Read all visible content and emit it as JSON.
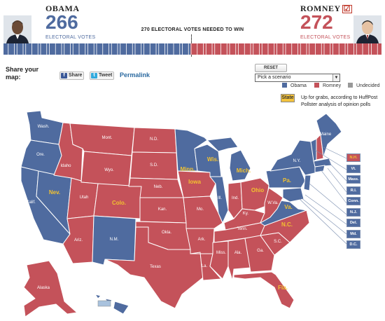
{
  "obama": {
    "name": "OBAMA",
    "votes": "266",
    "ev_label": "ELECTORAL VOTES",
    "color": "#4f6b9f"
  },
  "romney": {
    "name": "ROMNEY",
    "votes": "272",
    "ev_label": "ELECTORAL VOTES",
    "color": "#c4525a",
    "winner_mark": "☑"
  },
  "needed_text": "270 ELECTORAL VOTES NEEDED TO WIN",
  "share": {
    "label": "Share your map:",
    "facebook": "Share",
    "twitter": "Tweet",
    "permalink": "Permalink"
  },
  "controls": {
    "reset": "RESET",
    "scenario_placeholder": "Pick a scenario"
  },
  "legend": [
    {
      "label": "Obama",
      "color": "#4f6b9f"
    },
    {
      "label": "Romney",
      "color": "#c4525a"
    },
    {
      "label": "Undecided",
      "color": "#999999"
    }
  ],
  "pollster_note": {
    "badge": "State",
    "text": "Up for grabs, according to HuffPost Pollster analysis of opinion polls"
  },
  "tossup_color": "#f2c230",
  "states": {
    "wash": "Wash.",
    "ore": "Ore.",
    "calif": "Calif.",
    "nev": "Nev.",
    "idaho": "Idaho",
    "mont": "Mont.",
    "wyo": "Wyo.",
    "utah": "Utah",
    "colo": "Colo.",
    "ariz": "Ariz.",
    "nm": "N.M.",
    "nd": "N.D.",
    "sd": "S.D.",
    "neb": "Neb.",
    "kan": "Kan.",
    "okla": "Okla.",
    "texas": "Texas",
    "minn": "Minn.",
    "iowa": "Iowa",
    "mo": "Mo.",
    "ark": "Ark.",
    "la": "La.",
    "wis": "Wis.",
    "ill": "Ill.",
    "mich": "Mich.",
    "ind": "Ind.",
    "ohio": "Ohio",
    "ky": "Ky.",
    "tenn": "Tenn.",
    "miss": "Miss.",
    "ala": "Ala.",
    "ga": "Ga.",
    "fla": "Fla.",
    "sc": "S.C.",
    "nc": "N.C.",
    "va": "Va.",
    "wva": "W.Va.",
    "pa": "Pa.",
    "ny": "N.Y.",
    "maine": "Maine",
    "alaska": "Alaska"
  },
  "northeast": [
    {
      "label": "N.H.",
      "party": "red"
    },
    {
      "label": "Vt.",
      "party": "blue"
    },
    {
      "label": "Mass.",
      "party": "blue"
    },
    {
      "label": "R.I.",
      "party": "blue"
    },
    {
      "label": "Conn.",
      "party": "blue"
    },
    {
      "label": "N.J.",
      "party": "blue"
    },
    {
      "label": "Del.",
      "party": "blue"
    },
    {
      "label": "Md.",
      "party": "blue"
    },
    {
      "label": "D.C.",
      "party": "blue"
    }
  ]
}
